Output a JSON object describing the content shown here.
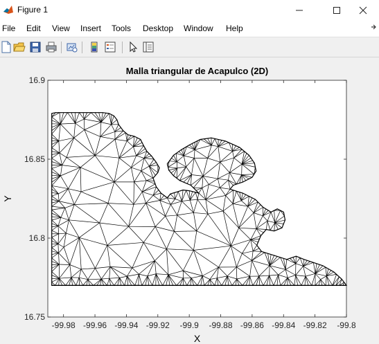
{
  "window": {
    "title": "Figure 1",
    "controls": {
      "minimize": "—",
      "maximize": "☐",
      "close": "✕"
    }
  },
  "menu": {
    "items": [
      "File",
      "Edit",
      "View",
      "Insert",
      "Tools",
      "Desktop",
      "Window",
      "Help"
    ],
    "dock_icon": "dock-arrow-icon"
  },
  "toolbar": {
    "icons": [
      "new-figure-icon",
      "open-file-icon",
      "save-icon",
      "print-icon",
      "link-plot-icon",
      "insert-colorbar-icon",
      "insert-legend-icon",
      "edit-plot-arrow-icon",
      "property-inspector-icon"
    ]
  },
  "colors": {
    "mesh": "#000000",
    "axes_background": "#ffffff",
    "figure_background": "#f0f0f0",
    "matlab_orange": "#d9541a"
  },
  "chart_data": {
    "type": "scatter",
    "title": "Malla triangular de Acapulco (2D)",
    "xlabel": "X",
    "ylabel": "Y",
    "xlim": [
      -99.99,
      -99.8
    ],
    "ylim": [
      16.75,
      16.9
    ],
    "xticks": [
      -99.98,
      -99.96,
      -99.94,
      -99.92,
      -99.9,
      -99.88,
      -99.86,
      -99.84,
      -99.82,
      -99.8
    ],
    "xtick_labels": [
      "-99.98",
      "-99.96",
      "-99.94",
      "-99.92",
      "-99.9",
      "-99.88",
      "-99.86",
      "-99.84",
      "-99.82",
      "-99.8"
    ],
    "yticks": [
      16.75,
      16.8,
      16.85,
      16.9
    ],
    "ytick_labels": [
      "16.75",
      "16.8",
      "16.85",
      "16.9"
    ],
    "grid": false,
    "mesh_type": "triangular mesh (triplot)",
    "boundary": [
      [
        -99.9875,
        16.77
      ],
      [
        -99.9875,
        16.879
      ],
      [
        -99.985,
        16.8795
      ],
      [
        -99.98,
        16.8795
      ],
      [
        -99.975,
        16.8795
      ],
      [
        -99.97,
        16.8795
      ],
      [
        -99.965,
        16.8795
      ],
      [
        -99.96,
        16.8795
      ],
      [
        -99.955,
        16.8795
      ],
      [
        -99.951,
        16.879
      ],
      [
        -99.948,
        16.8775
      ],
      [
        -99.946,
        16.875
      ],
      [
        -99.945,
        16.872
      ],
      [
        -99.942,
        16.868
      ],
      [
        -99.939,
        16.8655
      ],
      [
        -99.935,
        16.8645
      ],
      [
        -99.931,
        16.8625
      ],
      [
        -99.929,
        16.8585
      ],
      [
        -99.927,
        16.855
      ],
      [
        -99.924,
        16.852
      ],
      [
        -99.921,
        16.848
      ],
      [
        -99.919,
        16.8445
      ],
      [
        -99.92,
        16.8415
      ],
      [
        -99.923,
        16.838
      ],
      [
        -99.921,
        16.8325
      ],
      [
        -99.918,
        16.8285
      ],
      [
        -99.914,
        16.8255
      ],
      [
        -99.912,
        16.828
      ],
      [
        -99.907,
        16.8295
      ],
      [
        -99.904,
        16.8305
      ],
      [
        -99.9,
        16.83
      ],
      [
        -99.894,
        16.8285
      ],
      [
        -99.899,
        16.8335
      ],
      [
        -99.906,
        16.8365
      ],
      [
        -99.91,
        16.8395
      ],
      [
        -99.913,
        16.843
      ],
      [
        -99.914,
        16.847
      ],
      [
        -99.91,
        16.8525
      ],
      [
        -99.905,
        16.856
      ],
      [
        -99.9,
        16.859
      ],
      [
        -99.893,
        16.8625
      ],
      [
        -99.886,
        16.8635
      ],
      [
        -99.877,
        16.8615
      ],
      [
        -99.868,
        16.8575
      ],
      [
        -99.862,
        16.8525
      ],
      [
        -99.8585,
        16.8475
      ],
      [
        -99.8575,
        16.8425
      ],
      [
        -99.86,
        16.8385
      ],
      [
        -99.866,
        16.8355
      ],
      [
        -99.872,
        16.8335
      ],
      [
        -99.874,
        16.831
      ],
      [
        -99.866,
        16.8285
      ],
      [
        -99.858,
        16.8245
      ],
      [
        -99.853,
        16.8195
      ],
      [
        -99.848,
        16.8165
      ],
      [
        -99.844,
        16.8185
      ],
      [
        -99.84,
        16.8165
      ],
      [
        -99.839,
        16.8115
      ],
      [
        -99.841,
        16.8065
      ],
      [
        -99.846,
        16.8045
      ],
      [
        -99.851,
        16.8055
      ],
      [
        -99.8545,
        16.8015
      ],
      [
        -99.857,
        16.7955
      ],
      [
        -99.854,
        16.7915
      ],
      [
        -99.846,
        16.789
      ],
      [
        -99.838,
        16.7865
      ],
      [
        -99.832,
        16.7885
      ],
      [
        -99.827,
        16.7865
      ],
      [
        -99.821,
        16.7845
      ],
      [
        -99.815,
        16.7825
      ],
      [
        -99.808,
        16.7785
      ],
      [
        -99.803,
        16.774
      ],
      [
        -99.8,
        16.77
      ]
    ],
    "baseline_y": 16.77,
    "baseline_x": [
      -99.9875,
      -99.8
    ]
  }
}
